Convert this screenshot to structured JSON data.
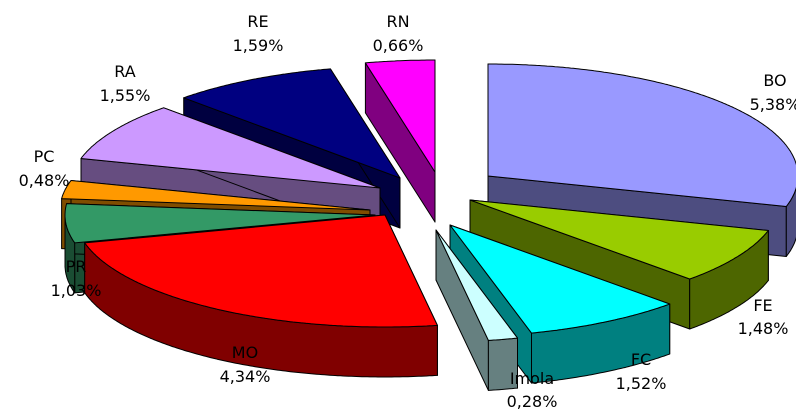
{
  "chart_data": {
    "type": "pie",
    "title": "",
    "slices": [
      {
        "id": "bo",
        "name": "BO",
        "value_label": "5,38%",
        "value": 5.38,
        "top_color": "#9999ff",
        "side_color": "#4d4d80"
      },
      {
        "id": "fe",
        "name": "FE",
        "value_label": "1,48%",
        "value": 1.48,
        "top_color": "#99cc00",
        "side_color": "#4d6600"
      },
      {
        "id": "fc",
        "name": "FC",
        "value_label": "1,52%",
        "value": 1.52,
        "top_color": "#00ffff",
        "side_color": "#008080"
      },
      {
        "id": "imola",
        "name": "Imola",
        "value_label": "0,28%",
        "value": 0.28,
        "top_color": "#ccffff",
        "side_color": "#668080"
      },
      {
        "id": "mo",
        "name": "MO",
        "value_label": "4,34%",
        "value": 4.34,
        "top_color": "#ff0000",
        "side_color": "#800000"
      },
      {
        "id": "pr",
        "name": "PR",
        "value_label": "1,03%",
        "value": 1.03,
        "top_color": "#339966",
        "side_color": "#1a4d33"
      },
      {
        "id": "pc",
        "name": "PC",
        "value_label": "0,48%",
        "value": 0.48,
        "top_color": "#ff9900",
        "side_color": "#804d00"
      },
      {
        "id": "ra",
        "name": "RA",
        "value_label": "1,55%",
        "value": 1.55,
        "top_color": "#cc99ff",
        "side_color": "#664d80"
      },
      {
        "id": "re",
        "name": "RE",
        "value_label": "1,59%",
        "value": 1.59,
        "top_color": "#000080",
        "side_color": "#000040"
      },
      {
        "id": "rn",
        "name": "RN",
        "value_label": "0,66%",
        "value": 0.66,
        "top_color": "#ff00ff",
        "side_color": "#800080"
      }
    ]
  }
}
